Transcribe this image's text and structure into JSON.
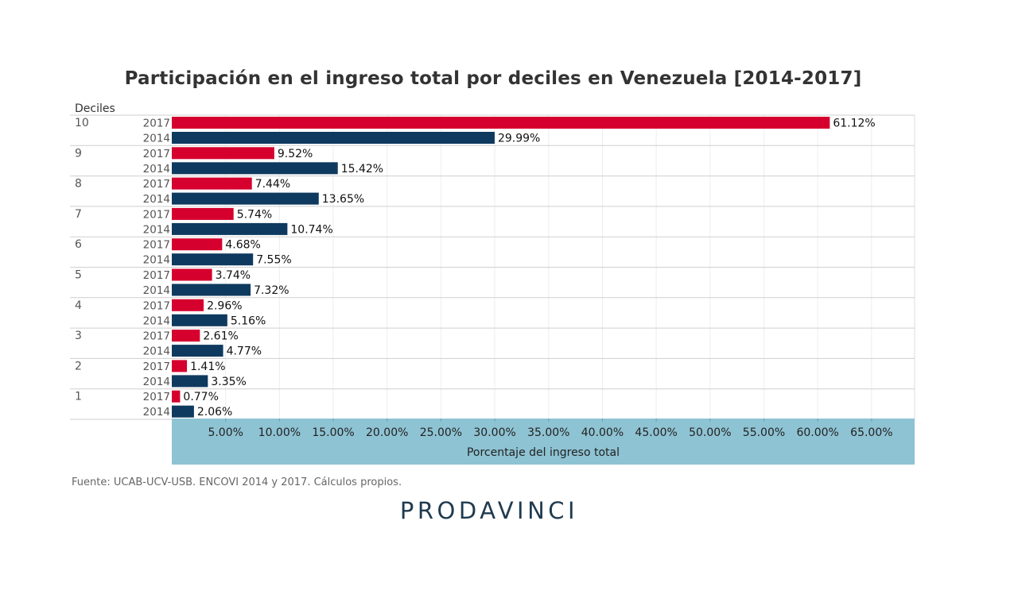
{
  "chart_data": {
    "type": "bar",
    "orientation": "horizontal",
    "title": "Participación en el ingreso total por deciles en Venezuela [2014-2017]",
    "row_header": "Deciles",
    "xlabel": "Porcentaje del ingreso total",
    "xlim": [
      0,
      69
    ],
    "x_ticks": [
      "5.00%",
      "10.00%",
      "15.00%",
      "20.00%",
      "25.00%",
      "30.00%",
      "35.00%",
      "40.00%",
      "45.00%",
      "50.00%",
      "55.00%",
      "60.00%",
      "65.00%"
    ],
    "x_tick_values": [
      5,
      10,
      15,
      20,
      25,
      30,
      35,
      40,
      45,
      50,
      55,
      60,
      65
    ],
    "categories": [
      "10",
      "9",
      "8",
      "7",
      "6",
      "5",
      "4",
      "3",
      "2",
      "1"
    ],
    "series": [
      {
        "name": "2017",
        "color": "#d5002e",
        "values": [
          61.12,
          9.52,
          7.44,
          5.74,
          4.68,
          3.74,
          2.96,
          2.61,
          1.41,
          0.77
        ],
        "labels": [
          "61.12%",
          "9.52%",
          "7.44%",
          "5.74%",
          "4.68%",
          "3.74%",
          "2.96%",
          "2.61%",
          "1.41%",
          "0.77%"
        ]
      },
      {
        "name": "2014",
        "color": "#0f3a5f",
        "values": [
          29.99,
          15.42,
          13.65,
          10.74,
          7.55,
          7.32,
          5.16,
          4.77,
          3.35,
          2.06
        ],
        "labels": [
          "29.99%",
          "15.42%",
          "13.65%",
          "10.74%",
          "7.55%",
          "7.32%",
          "5.16%",
          "4.77%",
          "3.35%",
          "2.06%"
        ]
      }
    ],
    "axis_band_color": "#8ec3d3",
    "grid": true
  },
  "footer": {
    "source": "Fuente: UCAB-UCV-USB. ENCOVI 2014 y 2017. Cálculos propios.",
    "logo": "PRODAVINCI"
  }
}
